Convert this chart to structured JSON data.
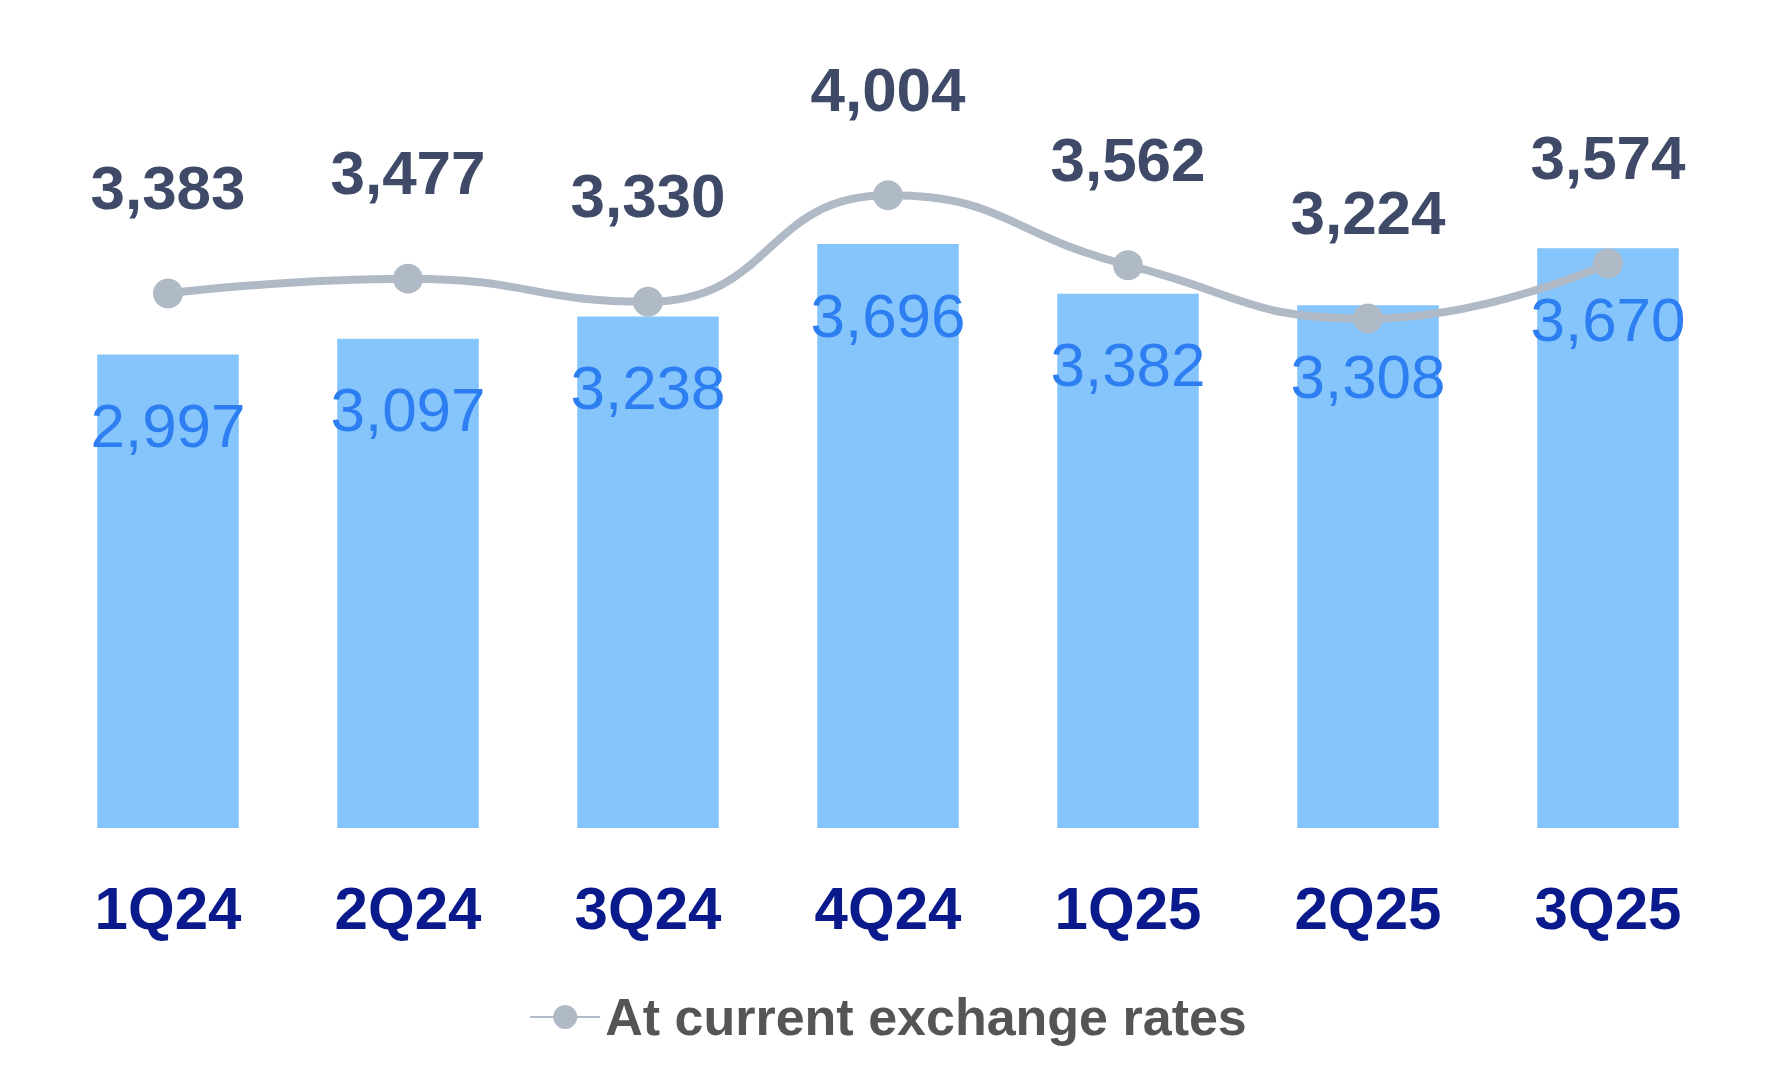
{
  "chart_data": {
    "type": "bar",
    "categories": [
      "1Q24",
      "2Q24",
      "3Q24",
      "4Q24",
      "1Q25",
      "2Q25",
      "3Q25"
    ],
    "series": [
      {
        "color": "#85c5fb",
        "values": [
          2997,
          3097,
          3238,
          3696,
          3382,
          3308,
          3670
        ],
        "value_labels": [
          "2,997",
          "3,097",
          "3,238",
          "3,696",
          "3,382",
          "3,308",
          "3,670"
        ]
      },
      {
        "type": "line",
        "name": "At current exchange rates",
        "color": "#b0bac6",
        "values": [
          3383,
          3477,
          3330,
          4004,
          3562,
          3224,
          3574
        ],
        "value_labels": [
          "3,383",
          "3,477",
          "3,330",
          "4,004",
          "3,562",
          "3,224",
          "3,574"
        ]
      }
    ],
    "legend": "bottom",
    "marker": "circle"
  }
}
